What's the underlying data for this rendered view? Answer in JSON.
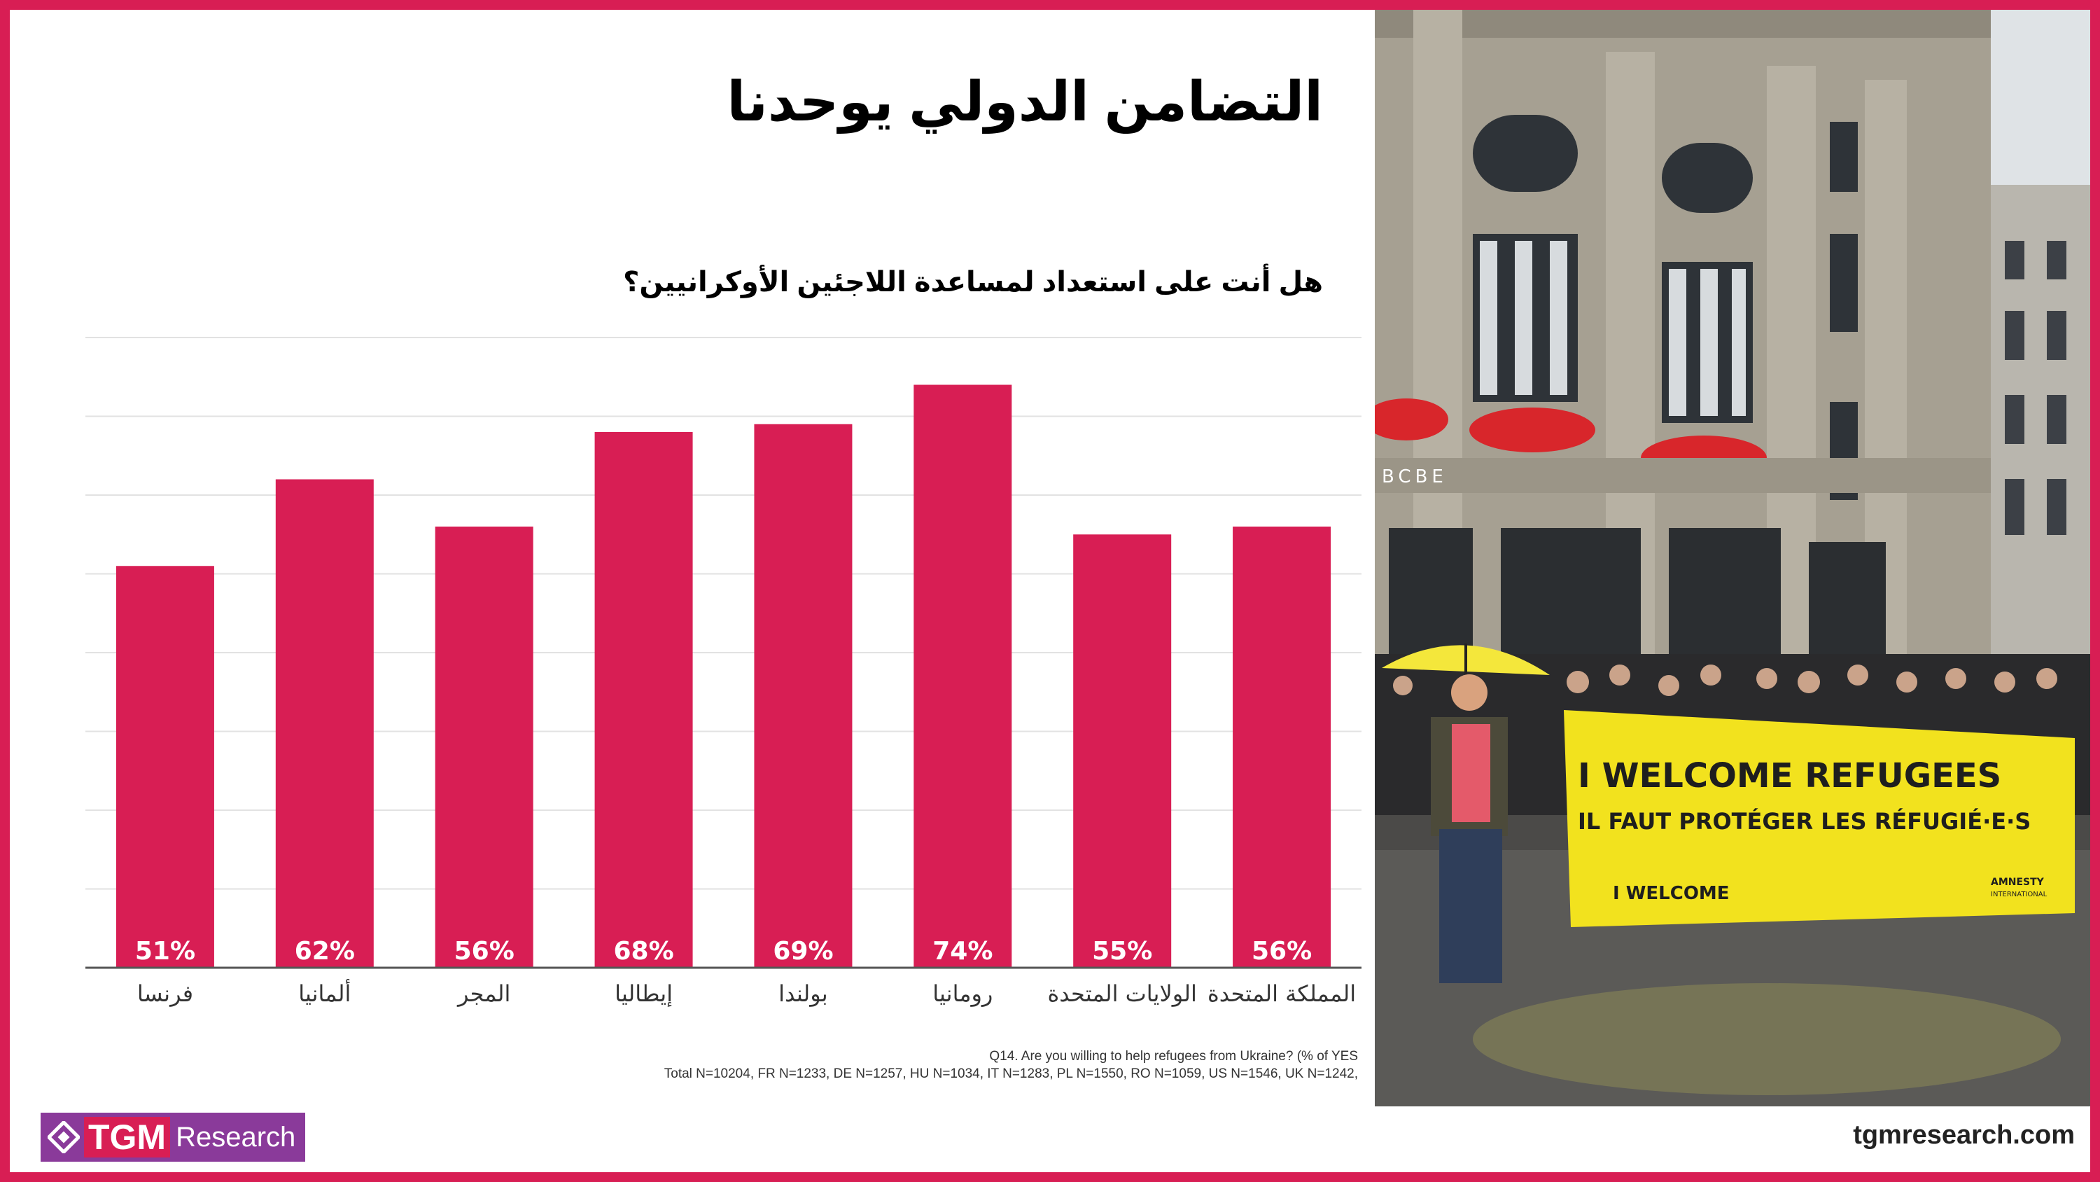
{
  "title": "التضامن الدولي يوحدنا",
  "question": "هل أنت على استعداد لمساعدة اللاجئين الأوكرانيين؟",
  "notes": {
    "line1": "Q14. Are you willing to help refugees from Ukraine? (% of YES",
    "line2": "Total   N=10204, FR N=1233, DE N=1257, HU N=1034, IT N=1283, PL N=1550, RO N=1059, US N=1546, UK N=1242,"
  },
  "logo": {
    "tgm": "TGM",
    "research": "Research"
  },
  "url": "tgmresearch.com",
  "colors": {
    "accent": "#d81e54",
    "logo_bg": "#8a3a9a"
  },
  "photo": {
    "banner_line1": "I WELCOME REFUGEES",
    "banner_line2": "IL FAUT PROTÉGER LES RÉFUGIÉ·E·S",
    "banner_small": "I WELCOME",
    "banner_brand1": "AMNESTY",
    "banner_brand2": "INTERNATIONAL",
    "building_sign": "BCBE"
  },
  "chart_data": {
    "type": "bar",
    "categories": [
      "فرنسا",
      "ألمانيا",
      "المجر",
      "إيطاليا",
      "بولندا",
      "رومانيا",
      "الولايات المتحدة",
      "المملكة المتحدة"
    ],
    "values": [
      51,
      62,
      56,
      68,
      69,
      74,
      55,
      56
    ],
    "value_labels": [
      "51%",
      "62%",
      "56%",
      "68%",
      "69%",
      "74%",
      "55%",
      "56%"
    ],
    "ylim": [
      0,
      80
    ],
    "grid": true,
    "bar_color": "#d81e54"
  }
}
